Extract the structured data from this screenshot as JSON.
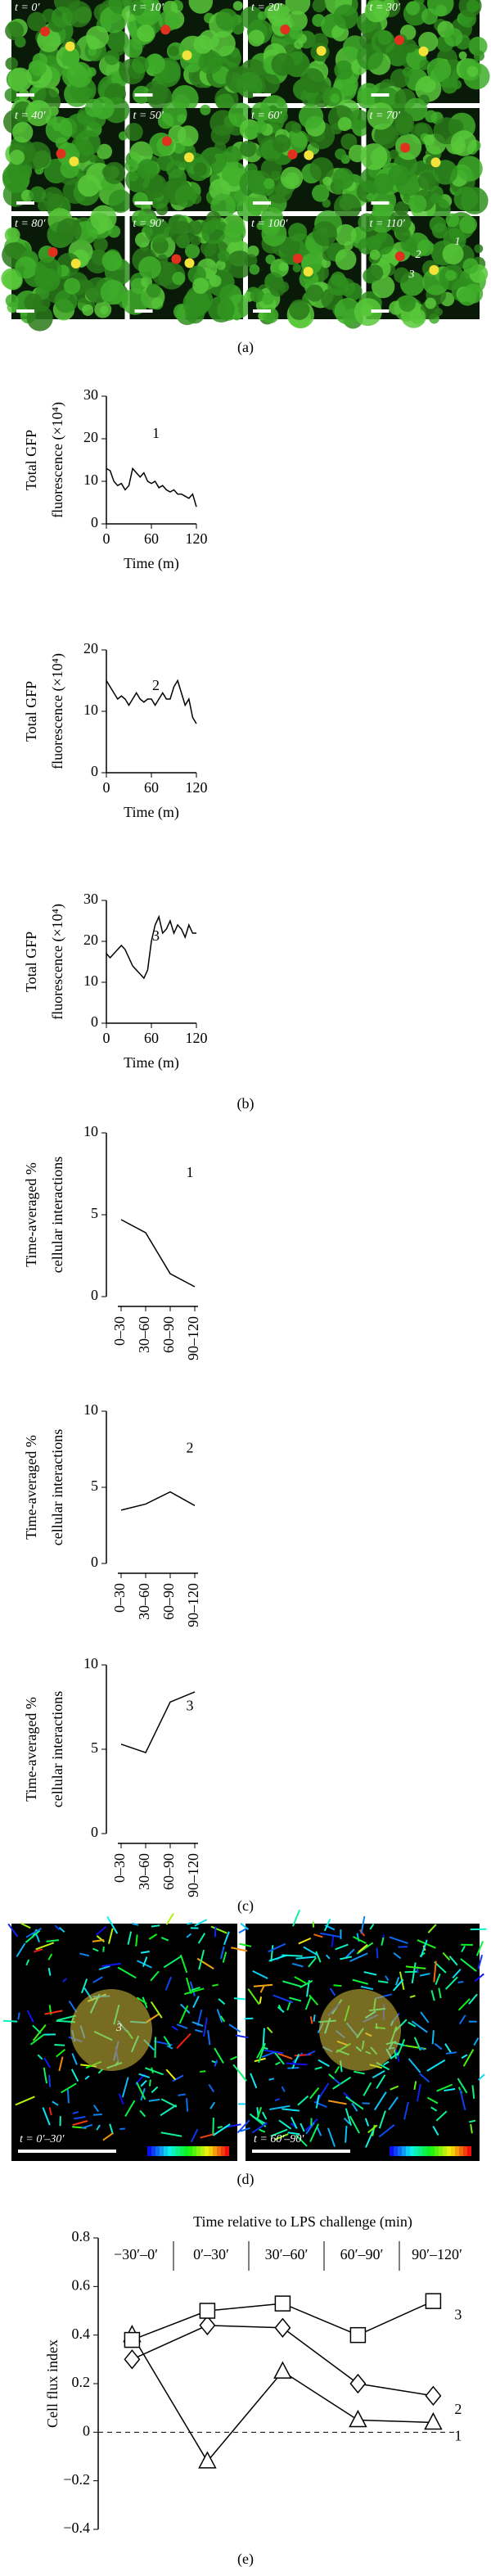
{
  "panel_a": {
    "frames": [
      "t = 0′",
      "t = 10′",
      "t = 20′",
      "t = 30′",
      "t = 40′",
      "t = 50′",
      "t = 60′",
      "t = 70′",
      "t = 80′",
      "t = 90′",
      "t = 100′",
      "t = 110′"
    ],
    "annotations": [
      "2",
      "1",
      "3"
    ]
  },
  "panel_d": {
    "frames": [
      "t = 0′–30′",
      "t = 60′–90′"
    ],
    "annotation": "3"
  },
  "panel_labels": [
    "(a)",
    "(b)",
    "(c)",
    "(d)",
    "(e)"
  ],
  "chart_data": [
    {
      "type": "line",
      "annotation": "1",
      "y_label": [
        "Total GFP",
        "fluorescence (×10⁴)"
      ],
      "x_label": "Time (m)",
      "x": [
        0,
        5,
        10,
        15,
        20,
        25,
        30,
        35,
        40,
        45,
        50,
        55,
        60,
        65,
        70,
        75,
        80,
        85,
        90,
        95,
        100,
        105,
        110,
        115,
        120
      ],
      "values": [
        13,
        12.5,
        10,
        9,
        9.5,
        8,
        9,
        13,
        12,
        11,
        12,
        10,
        9.5,
        10,
        8.5,
        9,
        8,
        7.5,
        8,
        7,
        7,
        6.5,
        6,
        7,
        4
      ],
      "color": "#000000",
      "xlim": [
        0,
        120
      ],
      "xticks": [
        0,
        60,
        120
      ],
      "ylim": [
        0,
        30
      ],
      "yticks": [
        0,
        10,
        20,
        30
      ]
    },
    {
      "type": "line",
      "annotation": "2",
      "y_label": [
        "Total GFP",
        "fluorescence (×10⁴)"
      ],
      "x_label": "Time (m)",
      "x": [
        0,
        5,
        10,
        15,
        20,
        25,
        30,
        35,
        40,
        45,
        50,
        55,
        60,
        65,
        70,
        75,
        80,
        85,
        90,
        95,
        100,
        105,
        110,
        115,
        120
      ],
      "values": [
        15,
        14,
        13,
        12,
        12.5,
        12,
        11,
        12,
        13,
        12,
        11.5,
        12,
        12,
        11,
        12,
        13,
        12,
        12,
        14,
        15,
        13,
        11,
        12,
        9,
        8
      ],
      "color": "#000000",
      "xlim": [
        0,
        120
      ],
      "xticks": [
        0,
        60,
        120
      ],
      "ylim": [
        0,
        20
      ],
      "yticks": [
        0,
        10,
        20
      ]
    },
    {
      "type": "line",
      "annotation": "3",
      "y_label": [
        "Total GFP",
        "fluorescence (×10⁴)"
      ],
      "x_label": "Time (m)",
      "x": [
        0,
        5,
        10,
        15,
        20,
        25,
        30,
        35,
        40,
        45,
        50,
        55,
        60,
        65,
        70,
        75,
        80,
        85,
        90,
        95,
        100,
        105,
        110,
        115,
        120
      ],
      "values": [
        17,
        16,
        17,
        18,
        19,
        18,
        16,
        14,
        13,
        12,
        11,
        13,
        20,
        24,
        26,
        22,
        23,
        25,
        22,
        24,
        23,
        21,
        24,
        22,
        22
      ],
      "color": "#000000",
      "xlim": [
        0,
        120
      ],
      "xticks": [
        0,
        60,
        120
      ],
      "ylim": [
        0,
        30
      ],
      "yticks": [
        0,
        10,
        20,
        30
      ]
    },
    {
      "type": "line",
      "annotation": "1",
      "y_label": [
        "Time-averaged %",
        "cellular interactions"
      ],
      "categories": [
        "0–30",
        "30–60",
        "60–90",
        "90–120"
      ],
      "values": [
        4.7,
        3.9,
        1.4,
        0.6
      ],
      "color": "#000000",
      "ylim": [
        0,
        10
      ],
      "yticks": [
        0,
        5,
        10
      ]
    },
    {
      "type": "line",
      "annotation": "2",
      "y_label": [
        "Time-averaged %",
        "cellular interactions"
      ],
      "categories": [
        "0–30",
        "30–60",
        "60–90",
        "90–120"
      ],
      "values": [
        3.5,
        3.9,
        4.7,
        3.8
      ],
      "color": "#000000",
      "ylim": [
        0,
        10
      ],
      "yticks": [
        0,
        5,
        10
      ]
    },
    {
      "type": "line",
      "annotation": "3",
      "y_label": [
        "Time-averaged %",
        "cellular interactions"
      ],
      "categories": [
        "0–30",
        "30–60",
        "60–90",
        "90–120"
      ],
      "values": [
        5.3,
        4.8,
        7.8,
        8.4
      ],
      "color": "#000000",
      "ylim": [
        0,
        10
      ],
      "yticks": [
        0,
        5,
        10
      ]
    },
    {
      "type": "marker_line",
      "title": "Time relative to LPS challenge (min)",
      "y_label": [
        "Cell flux index"
      ],
      "categories": [
        "−30′–0′",
        "0′–30′",
        "30′–60′",
        "60′–90′",
        "90′–120′"
      ],
      "series": [
        {
          "name": "1",
          "marker": "triangle",
          "color": "#000000",
          "values": [
            0.4,
            -0.12,
            0.25,
            0.05,
            0.04
          ]
        },
        {
          "name": "2",
          "marker": "diamond",
          "color": "#000000",
          "values": [
            0.3,
            0.44,
            0.43,
            0.2,
            0.15
          ]
        },
        {
          "name": "3",
          "marker": "square",
          "color": "#000000",
          "values": [
            0.38,
            0.5,
            0.53,
            0.4,
            0.54
          ]
        }
      ],
      "hline": 0,
      "ylim": [
        -0.4,
        0.8
      ],
      "yticks": [
        {
          "value": -0.4,
          "label": "−0.4"
        },
        {
          "value": -0.2,
          "label": "−0.2"
        },
        0,
        0.2,
        0.4,
        0.6,
        0.8
      ]
    }
  ]
}
